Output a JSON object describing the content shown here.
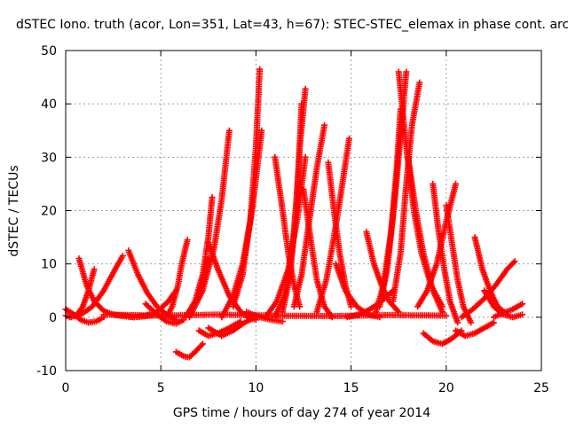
{
  "chart_data": {
    "type": "scatter",
    "title": "dSTEC Iono. truth (acor, Lon=351, Lat=43, h=67): STEC-STEC_elemax in phase cont. arc",
    "xlabel": "GPS time / hours of day 274 of year 2014",
    "ylabel": "dSTEC  / TECUs",
    "xlim": [
      0,
      25
    ],
    "ylim": [
      -10,
      50
    ],
    "xticks": [
      0,
      5,
      10,
      15,
      20,
      25
    ],
    "yticks": [
      -10,
      0,
      10,
      20,
      30,
      40,
      50
    ],
    "xtick_labels": [
      "0",
      "5",
      "10",
      "15",
      "20",
      "25"
    ],
    "ytick_labels": [
      "-10",
      "0",
      "10",
      "20",
      "30",
      "40",
      "50"
    ],
    "grid": true,
    "marker": "plus",
    "color": "#ff0000",
    "series": [
      {
        "x": [
          0.0,
          0.4,
          0.8,
          1.2,
          1.6,
          2.0
        ],
        "y": [
          1.5,
          0.6,
          -0.5,
          -1.0,
          -0.8,
          0.0
        ]
      },
      {
        "x": [
          0.0,
          0.3,
          0.6,
          0.9,
          1.2,
          1.5
        ],
        "y": [
          0.3,
          0.0,
          0.5,
          2.0,
          5.0,
          9.0
        ]
      },
      {
        "x": [
          0.7,
          1.1,
          1.5,
          2.0,
          2.5,
          3.0,
          3.6,
          4.2,
          5.0
        ],
        "y": [
          11.0,
          6.0,
          3.0,
          1.2,
          0.5,
          0.2,
          0.0,
          0.2,
          0.5
        ]
      },
      {
        "x": [
          0.2,
          0.8,
          1.4,
          2.0,
          2.6,
          3.0
        ],
        "y": [
          0.0,
          0.5,
          2.0,
          5.0,
          9.0,
          11.5
        ]
      },
      {
        "x": [
          3.3,
          3.8,
          4.3,
          4.8,
          5.3,
          5.8
        ],
        "y": [
          12.5,
          8.0,
          4.5,
          2.0,
          0.5,
          -0.5
        ]
      },
      {
        "x": [
          2.5,
          3.0,
          3.6,
          4.2,
          4.8,
          5.4,
          5.8
        ],
        "y": [
          0.5,
          0.3,
          0.0,
          0.3,
          1.0,
          3.0,
          5.0
        ]
      },
      {
        "x": [
          4.2,
          4.8,
          5.3,
          5.8,
          6.2
        ],
        "y": [
          2.5,
          0.5,
          -0.8,
          -1.2,
          -0.5
        ]
      },
      {
        "x": [
          5.3,
          5.6,
          5.9,
          6.1,
          6.4
        ],
        "y": [
          0.0,
          2.0,
          6.0,
          10.0,
          14.5
        ]
      },
      {
        "x": [
          5.8,
          6.2,
          6.5,
          6.8,
          7.2
        ],
        "y": [
          -6.5,
          -7.3,
          -7.5,
          -6.5,
          -5.0
        ]
      },
      {
        "x": [
          6.5,
          6.9,
          7.2,
          7.5
        ],
        "y": [
          1.0,
          3.0,
          7.0,
          11.0
        ]
      },
      {
        "x": [
          6.3,
          6.8,
          7.2,
          7.5,
          7.7
        ],
        "y": [
          0.0,
          3.0,
          8.0,
          15.0,
          22.5
        ]
      },
      {
        "x": [
          7.0,
          7.5,
          8.0,
          8.6,
          9.2
        ],
        "y": [
          -2.5,
          -3.5,
          -3.0,
          -2.0,
          -0.8
        ]
      },
      {
        "x": [
          6.5,
          7.2,
          7.8,
          8.2,
          8.6
        ],
        "y": [
          0.0,
          5.0,
          13.0,
          22.0,
          35.0
        ]
      },
      {
        "x": [
          7.5,
          8.2,
          8.8,
          9.4,
          10.0
        ],
        "y": [
          -2.0,
          -3.5,
          -2.5,
          -1.0,
          0.0
        ]
      },
      {
        "x": [
          7.5,
          8.0,
          8.6,
          9.2,
          9.6,
          10.0
        ],
        "y": [
          14.0,
          9.0,
          4.0,
          1.0,
          0.0,
          -0.5
        ]
      },
      {
        "x": [
          8.2,
          8.8,
          9.3,
          9.8,
          10.3
        ],
        "y": [
          0.0,
          4.0,
          10.0,
          20.0,
          35.0
        ]
      },
      {
        "x": [
          8.8,
          9.3,
          9.7,
          10.0,
          10.2
        ],
        "y": [
          2.0,
          8.0,
          18.0,
          32.0,
          46.5
        ]
      },
      {
        "x": [
          9.5,
          10.2,
          10.8,
          11.4
        ],
        "y": [
          1.0,
          0.0,
          -0.5,
          -0.8
        ]
      },
      {
        "x": [
          10.5,
          11.1,
          11.7,
          12.2,
          12.6
        ],
        "y": [
          0.0,
          3.0,
          9.0,
          19.0,
          30.0
        ]
      },
      {
        "x": [
          11.0,
          11.5,
          11.9,
          12.2,
          12.4
        ],
        "y": [
          0.0,
          4.0,
          12.0,
          25.0,
          40.0
        ]
      },
      {
        "x": [
          11.4,
          11.8,
          12.1,
          12.3,
          12.6
        ],
        "y": [
          1.0,
          8.0,
          20.0,
          32.0,
          42.8
        ]
      },
      {
        "x": [
          11.0,
          11.4,
          11.7,
          12.0,
          12.3
        ],
        "y": [
          30.0,
          20.0,
          12.0,
          6.0,
          2.0
        ]
      },
      {
        "x": [
          12.0,
          12.4,
          12.8,
          13.2,
          13.6
        ],
        "y": [
          2.0,
          8.0,
          18.0,
          28.0,
          36.0
        ]
      },
      {
        "x": [
          12.5,
          12.9,
          13.2,
          13.6,
          14.0
        ],
        "y": [
          24.0,
          14.0,
          7.0,
          2.0,
          0.0
        ]
      },
      {
        "x": [
          13.2,
          13.7,
          14.1,
          14.5,
          14.9
        ],
        "y": [
          1.0,
          7.0,
          15.0,
          24.0,
          33.5
        ]
      },
      {
        "x": [
          13.8,
          14.1,
          14.4,
          14.7,
          15.0
        ],
        "y": [
          29.0,
          20.0,
          12.0,
          6.0,
          2.0
        ]
      },
      {
        "x": [
          14.2,
          14.7,
          15.3,
          15.9,
          16.5
        ],
        "y": [
          10.0,
          5.0,
          2.0,
          0.5,
          0.0
        ]
      },
      {
        "x": [
          14.8,
          15.4,
          16.0,
          16.6,
          17.2
        ],
        "y": [
          0.0,
          0.5,
          1.5,
          3.0,
          5.0
        ]
      },
      {
        "x": [
          15.8,
          16.2,
          16.6,
          17.0,
          17.5
        ],
        "y": [
          16.0,
          10.0,
          6.0,
          3.0,
          1.0
        ]
      },
      {
        "x": [
          16.3,
          16.7,
          17.1,
          17.4,
          17.6
        ],
        "y": [
          1.0,
          6.0,
          16.0,
          28.0,
          39.0
        ]
      },
      {
        "x": [
          16.5,
          16.9,
          17.3,
          17.6,
          17.9
        ],
        "y": [
          2.0,
          9.0,
          22.0,
          34.0,
          46.0
        ]
      },
      {
        "x": [
          17.2,
          17.6,
          17.9,
          18.2,
          18.6
        ],
        "y": [
          3.0,
          12.0,
          25.0,
          36.0,
          44.0
        ]
      },
      {
        "x": [
          17.5,
          17.9,
          18.3,
          18.7,
          19.2,
          19.8
        ],
        "y": [
          46.0,
          32.0,
          20.0,
          12.0,
          6.0,
          2.0
        ]
      },
      {
        "x": [
          18.0,
          18.4,
          18.8,
          19.3,
          19.8
        ],
        "y": [
          30.0,
          20.0,
          12.0,
          5.0,
          1.0
        ]
      },
      {
        "x": [
          18.5,
          19.0,
          19.5,
          20.0,
          20.5
        ],
        "y": [
          2.0,
          5.0,
          10.0,
          18.0,
          25.0
        ]
      },
      {
        "x": [
          19.3,
          19.6,
          19.9,
          20.2,
          20.6
        ],
        "y": [
          25.0,
          16.0,
          9.0,
          3.0,
          -1.0
        ]
      },
      {
        "x": [
          18.8,
          19.3,
          19.8,
          20.3,
          20.8
        ],
        "y": [
          -3.0,
          -4.5,
          -5.0,
          -4.0,
          -2.5
        ]
      },
      {
        "x": [
          20.0,
          20.3,
          20.6,
          20.9,
          21.3
        ],
        "y": [
          21.0,
          14.0,
          7.0,
          2.0,
          -1.0
        ]
      },
      {
        "x": [
          20.5,
          21.0,
          21.5,
          22.0,
          22.5
        ],
        "y": [
          -2.5,
          -3.5,
          -3.0,
          -2.0,
          -1.0
        ]
      },
      {
        "x": [
          21.5,
          21.9,
          22.3,
          22.7,
          23.2
        ],
        "y": [
          15.0,
          9.0,
          5.0,
          2.0,
          0.5
        ]
      },
      {
        "x": [
          20.8,
          21.4,
          22.0,
          22.6,
          23.2,
          23.6
        ],
        "y": [
          0.0,
          1.5,
          3.5,
          6.0,
          9.0,
          10.5
        ]
      },
      {
        "x": [
          22.0,
          22.5,
          23.0,
          23.5,
          24.0
        ],
        "y": [
          5.0,
          2.0,
          0.5,
          0.0,
          0.5
        ]
      },
      {
        "x": [
          22.5,
          23.0,
          23.5,
          24.0
        ],
        "y": [
          0.0,
          0.8,
          1.5,
          2.5
        ]
      },
      {
        "x": [
          2.0,
          5.0,
          8.0,
          11.0,
          14.0,
          17.0,
          20.0
        ],
        "y": [
          0.5,
          0.3,
          0.5,
          0.3,
          0.2,
          0.4,
          0.3
        ]
      }
    ]
  }
}
